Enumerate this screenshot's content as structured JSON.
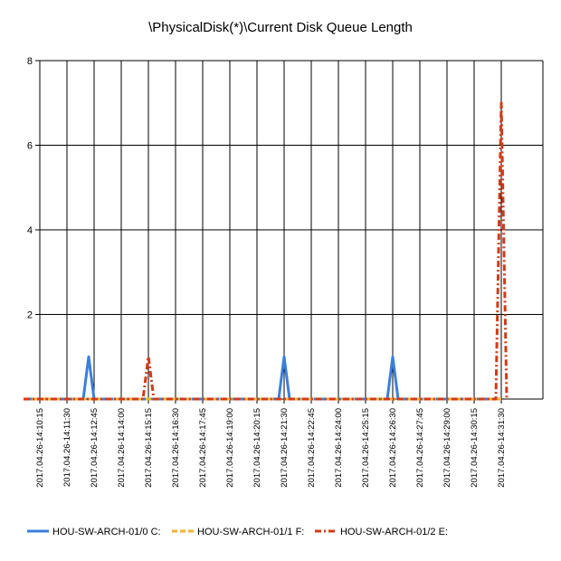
{
  "chart_data": {
    "type": "line",
    "title": "\\PhysicalDisk(*)\\Current Disk Queue Length",
    "xlabel": "",
    "ylabel": "",
    "ylim": [
      0,
      8
    ],
    "y_ticks": [
      "",
      "2",
      "4",
      "6",
      "8"
    ],
    "grid": true,
    "legend_position": "bottom-left",
    "x_tick_labels": [
      "2017.04.26-14:10:15",
      "2017.04.26-14:11:30",
      "2017.04.26-14:12:45",
      "2017.04.26-14:14:00",
      "2017.04.26-14:15:15",
      "2017.04.26-14:16:30",
      "2017.04.26-14:17:45",
      "2017.04.26-14:19:00",
      "2017.04.26-14:20:15",
      "2017.04.26-14:21:30",
      "2017.04.26-14:22:45",
      "2017.04.26-14:24:00",
      "2017.04.26-14:25:15",
      "2017.04.26-14:26:30",
      "2017.04.26-14:27:45",
      "2017.04.26-14:29:00",
      "2017.04.26-14:30:15",
      "2017.04.26-14:31:30"
    ],
    "series": [
      {
        "name": "HOU-SW-ARCH-01/0 C:",
        "color": "#3b7fdd",
        "dash": "solid",
        "points": [
          [
            "14:09:30",
            0
          ],
          [
            "14:12:15",
            0
          ],
          [
            "14:12:30",
            1
          ],
          [
            "14:12:45",
            0
          ],
          [
            "14:21:15",
            0
          ],
          [
            "14:21:30",
            1
          ],
          [
            "14:21:45",
            0
          ],
          [
            "14:26:15",
            0
          ],
          [
            "14:26:30",
            1
          ],
          [
            "14:26:45",
            0
          ],
          [
            "14:31:30",
            0
          ]
        ]
      },
      {
        "name": "HOU-SW-ARCH-01/1 F:",
        "color": "#f2b233",
        "dash": "dashed",
        "points": [
          [
            "14:09:30",
            0
          ],
          [
            "14:31:30",
            0
          ]
        ]
      },
      {
        "name": "HOU-SW-ARCH-01/2 E:",
        "color": "#d23a16",
        "dash": "dashdot",
        "points": [
          [
            "14:09:30",
            0
          ],
          [
            "14:15:00",
            0
          ],
          [
            "14:15:15",
            1
          ],
          [
            "14:15:30",
            0
          ],
          [
            "14:31:15",
            0
          ],
          [
            "14:31:30",
            7
          ],
          [
            "14:31:45",
            0
          ]
        ]
      }
    ]
  }
}
